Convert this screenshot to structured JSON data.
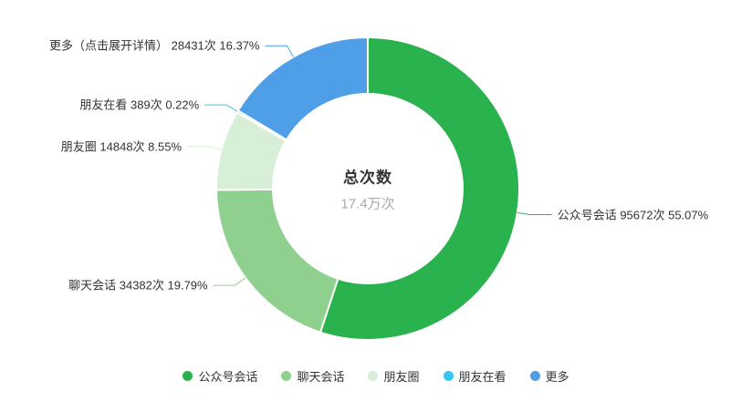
{
  "chart_data": {
    "type": "pie",
    "subtype": "donut",
    "center": {
      "label": "总次数",
      "value": "17.4万次"
    },
    "total": 173722,
    "unit": "次",
    "legend_position": "bottom",
    "series": [
      {
        "name": "公众号会话",
        "value": 95672,
        "percent": "55.07%",
        "label": "公众号会话 95672次 55.07%",
        "color": "#2ab24f"
      },
      {
        "name": "聊天会话",
        "value": 34382,
        "percent": "19.79%",
        "label": "聊天会话 34382次 19.79%",
        "color": "#8fd08f"
      },
      {
        "name": "朋友圈",
        "value": 14848,
        "percent": "8.55%",
        "label": "朋友圈 14848次 8.55%",
        "color": "#d6efd6"
      },
      {
        "name": "朋友在看",
        "value": 389,
        "percent": "0.22%",
        "label": "朋友在看 389次 0.22%",
        "color": "#39c5f1"
      },
      {
        "name": "更多",
        "value": 28431,
        "percent": "16.37%",
        "label": "更多（点击展开详情） 28431次 16.37%",
        "color": "#4f9ee8"
      }
    ],
    "legend": [
      "公众号会话",
      "聊天会话",
      "朋友圈",
      "朋友在看",
      "更多"
    ]
  }
}
